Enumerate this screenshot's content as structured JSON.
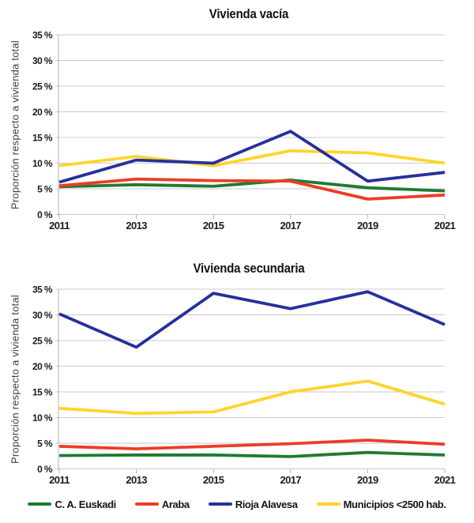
{
  "chart_data": [
    {
      "type": "line",
      "title": "Vivienda vacía",
      "ylabel": "Proporción respecto a vivienda total",
      "x": [
        2011,
        2013,
        2015,
        2017,
        2019,
        2021
      ],
      "x_tick_labels": [
        "2011",
        "2013",
        "2015",
        "2017",
        "2019",
        "2021"
      ],
      "ylim": [
        0,
        35
      ],
      "ytick_step": 5,
      "y_tick_labels": [
        "0 %",
        "5 %",
        "10 %",
        "15 %",
        "20 %",
        "25 %",
        "30 %",
        "35 %"
      ],
      "grid": true,
      "legend_position": "shared-bottom-center",
      "series": [
        {
          "name": "C. A.  Euskadi",
          "color": "#1e7b33",
          "values": [
            5.4,
            5.8,
            5.5,
            6.7,
            5.2,
            4.6
          ]
        },
        {
          "name": "Araba",
          "color": "#ee3c24",
          "values": [
            5.6,
            6.9,
            6.6,
            6.5,
            3.0,
            3.8
          ]
        },
        {
          "name": "Municipios <2500 hab.",
          "color": "#ffd42c",
          "values": [
            9.5,
            11.3,
            9.5,
            12.4,
            12.0,
            10.0
          ]
        },
        {
          "name": "Rioja Alavesa",
          "color": "#26309c",
          "values": [
            6.3,
            10.6,
            10.0,
            16.2,
            6.5,
            8.2
          ]
        }
      ]
    },
    {
      "type": "line",
      "title": "Vivienda secundaria",
      "ylabel": "Proporción respecto a vivienda total",
      "x": [
        2011,
        2013,
        2015,
        2017,
        2019,
        2021
      ],
      "x_tick_labels": [
        "2011",
        "2013",
        "2015",
        "2017",
        "2019",
        "2021"
      ],
      "ylim": [
        0,
        35
      ],
      "ytick_step": 5,
      "y_tick_labels": [
        "0 %",
        "5 %",
        "10 %",
        "15 %",
        "20 %",
        "25 %",
        "30 %",
        "35 %"
      ],
      "grid": true,
      "legend_position": "shared-bottom-center",
      "series": [
        {
          "name": "C. A.  Euskadi",
          "color": "#1e7b33",
          "values": [
            2.6,
            2.7,
            2.7,
            2.4,
            3.2,
            2.7
          ]
        },
        {
          "name": "Araba",
          "color": "#ee3c24",
          "values": [
            4.4,
            3.9,
            4.4,
            4.9,
            5.6,
            4.8
          ]
        },
        {
          "name": "Municipios <2500 hab.",
          "color": "#ffd42c",
          "values": [
            11.8,
            10.8,
            11.1,
            15.0,
            17.1,
            12.6
          ]
        },
        {
          "name": "Rioja Alavesa",
          "color": "#26309c",
          "values": [
            30.2,
            23.7,
            34.2,
            31.2,
            34.5,
            28.1
          ]
        }
      ]
    }
  ],
  "legend": {
    "items": [
      {
        "label": "C. A.  Euskadi",
        "color": "#1e7b33"
      },
      {
        "label": "Araba",
        "color": "#ee3c24"
      },
      {
        "label": "Rioja Alavesa",
        "color": "#26309c"
      },
      {
        "label": "Municipios <2500 hab.",
        "color": "#ffd42c"
      }
    ]
  }
}
